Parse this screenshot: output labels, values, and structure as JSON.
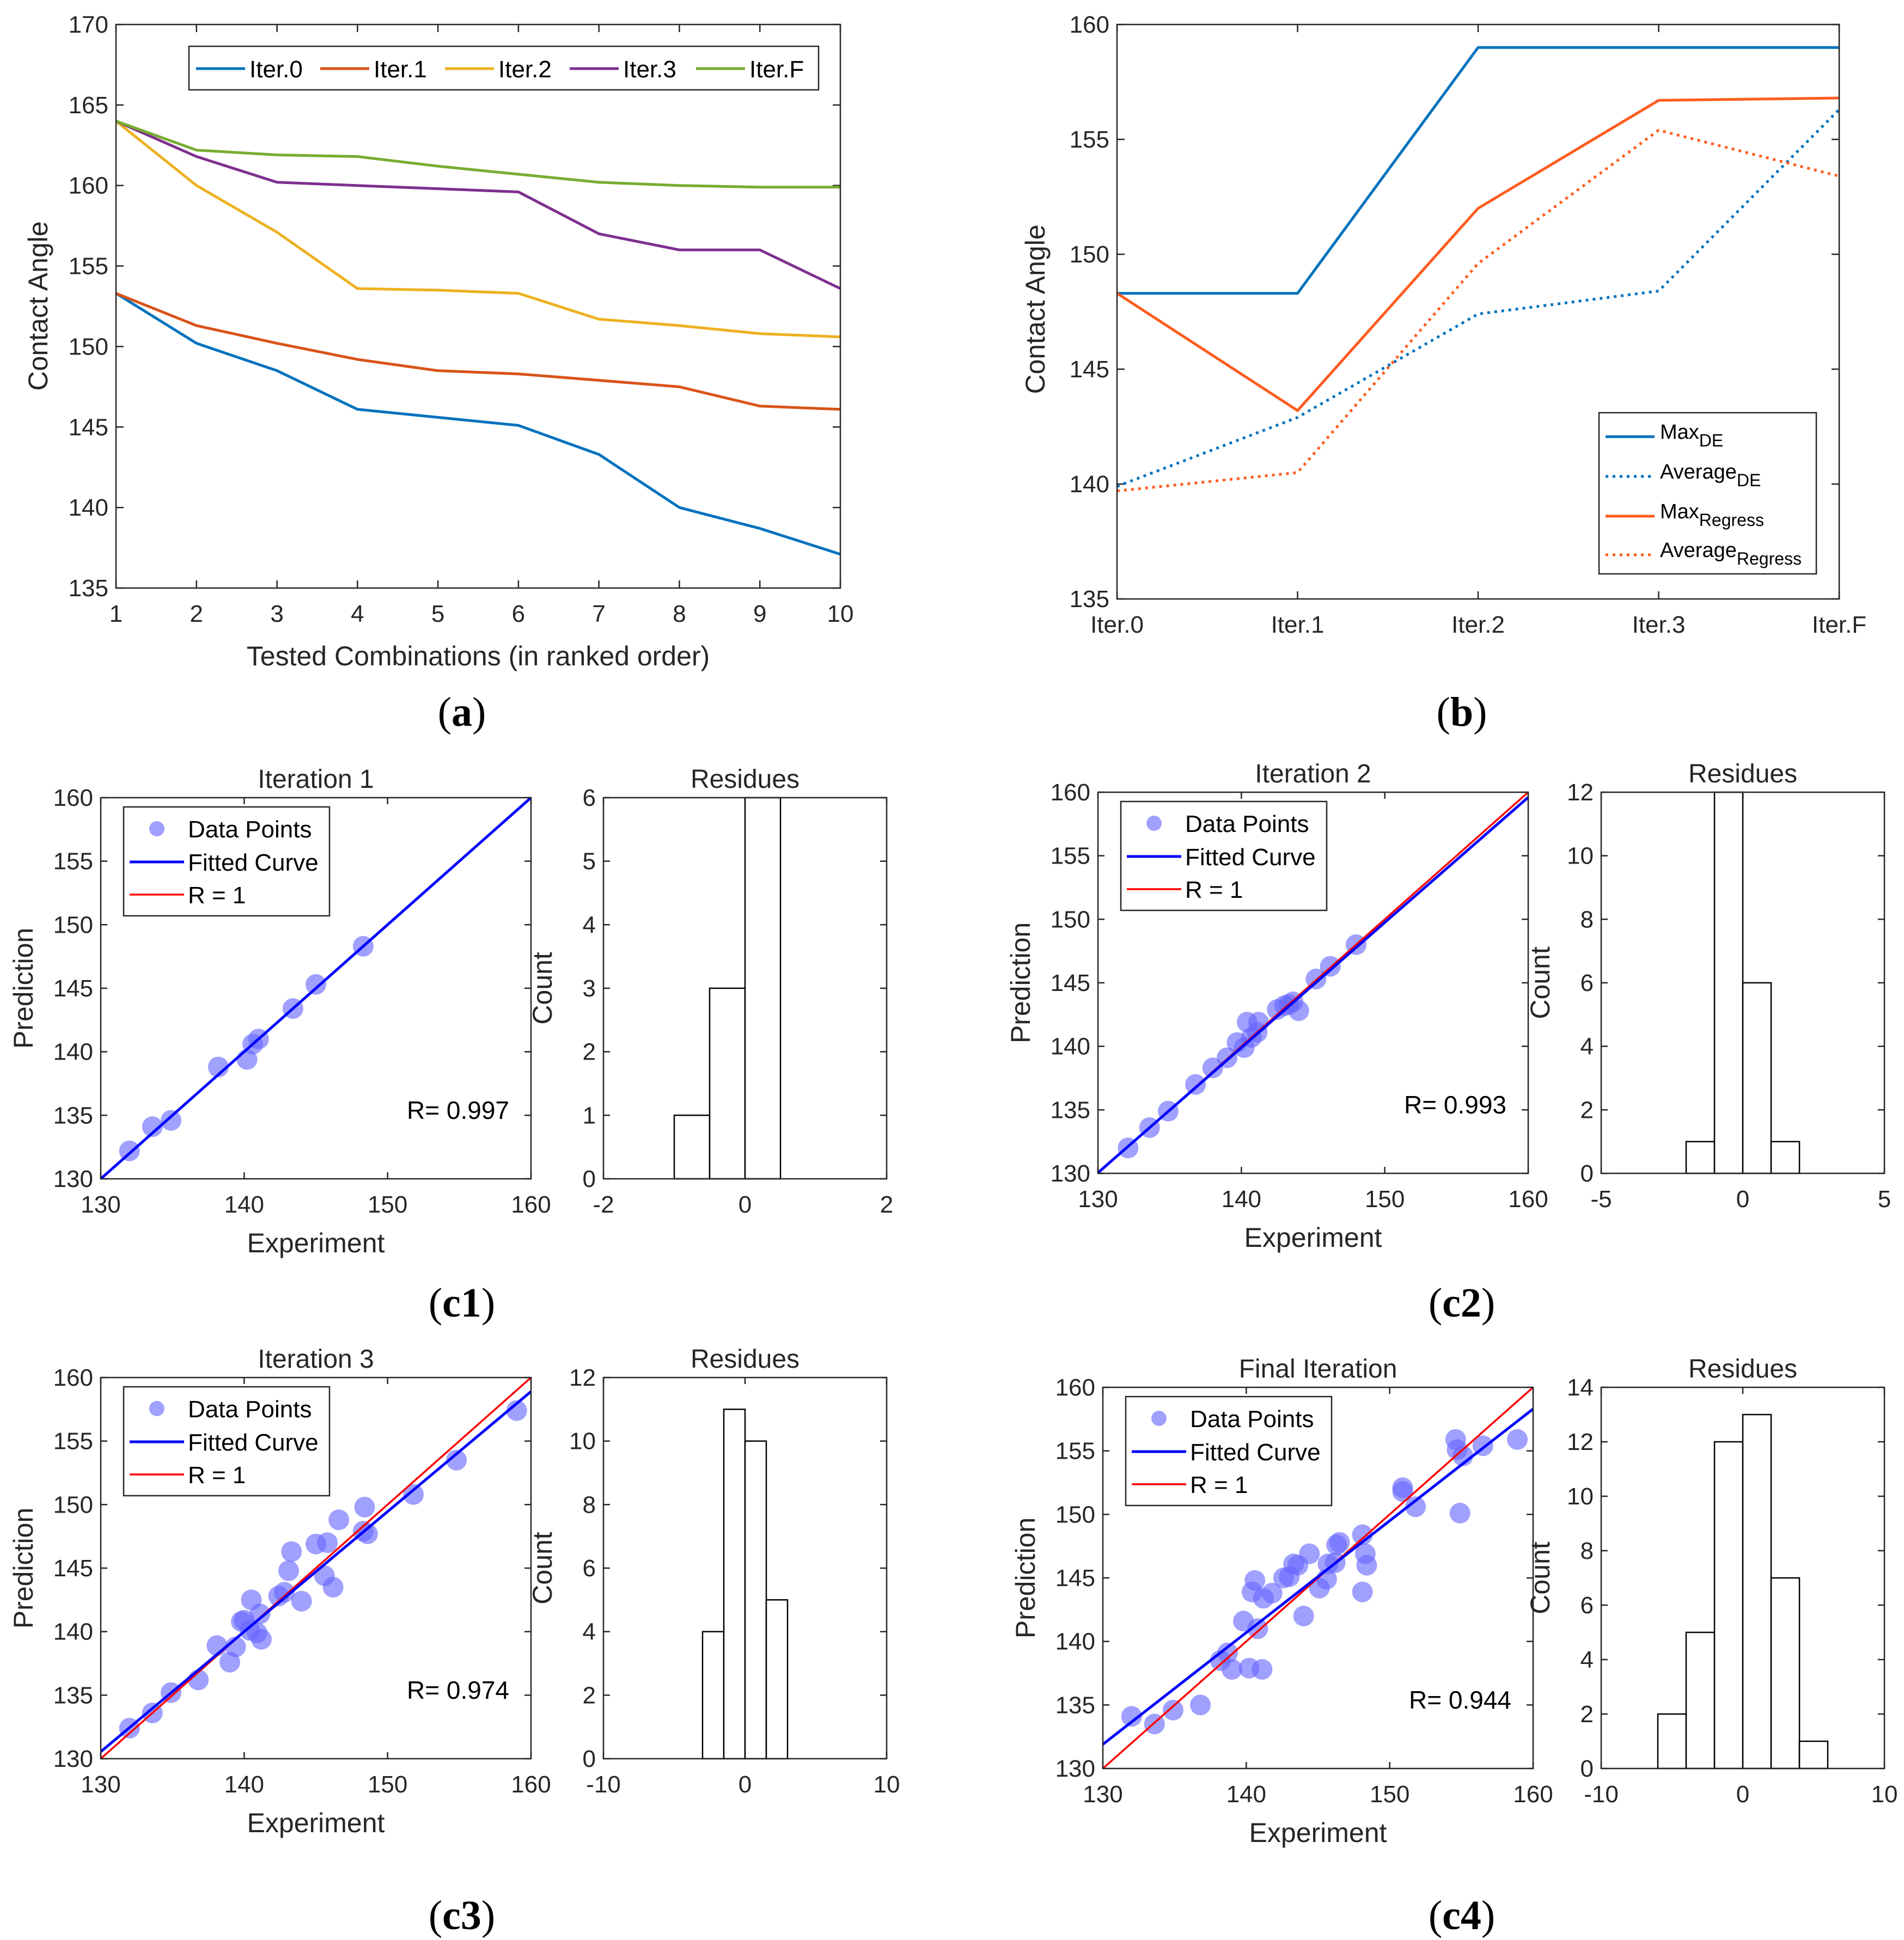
{
  "colors": {
    "iter0": "#0072BD",
    "iter1": "#D95319",
    "iter2": "#EDB120",
    "iter3": "#7E2F8E",
    "iterF": "#77AC30",
    "blue": "#0000FF",
    "red": "#FF0000",
    "points": "#6666FF"
  },
  "captions": {
    "a": [
      "(",
      "a",
      ")"
    ],
    "b": [
      "(",
      "b",
      ")"
    ],
    "c1": [
      "(",
      "c1",
      ")"
    ],
    "c2": [
      "(",
      "c2",
      ")"
    ],
    "c3": [
      "(",
      "c3",
      ")"
    ],
    "c4": [
      "(",
      "c4",
      ")"
    ]
  },
  "chart_data": [
    {
      "id": "a",
      "type": "line",
      "title": "",
      "xlabel": "Tested Combinations (in ranked order)",
      "ylabel": "Contact Angle",
      "xlim": [
        1,
        10
      ],
      "ylim": [
        135,
        170
      ],
      "xticks": [
        1,
        2,
        3,
        4,
        5,
        6,
        7,
        8,
        9,
        10
      ],
      "yticks": [
        135,
        140,
        145,
        150,
        155,
        160,
        165,
        170
      ],
      "legend_position": "top",
      "x": [
        1,
        2,
        3,
        4,
        5,
        6,
        7,
        8,
        9,
        10
      ],
      "series": [
        {
          "name": "Iter.0",
          "color": "#0072BD",
          "values": [
            153.3,
            150.2,
            148.5,
            146.1,
            145.6,
            145.1,
            143.3,
            140.0,
            138.7,
            137.1
          ]
        },
        {
          "name": "Iter.1",
          "color": "#D95319",
          "values": [
            153.3,
            151.3,
            150.2,
            149.2,
            148.5,
            148.3,
            147.9,
            147.5,
            146.3,
            146.1
          ]
        },
        {
          "name": "Iter.2",
          "color": "#EDB120",
          "values": [
            164.0,
            160.0,
            157.1,
            153.6,
            153.5,
            153.3,
            151.7,
            151.3,
            150.8,
            150.6
          ]
        },
        {
          "name": "Iter.3",
          "color": "#7E2F8E",
          "values": [
            164.0,
            161.8,
            160.2,
            160.0,
            159.8,
            159.6,
            157.0,
            156.0,
            156.0,
            153.6
          ]
        },
        {
          "name": "Iter.F",
          "color": "#77AC30",
          "values": [
            164.0,
            162.2,
            161.9,
            161.8,
            161.2,
            160.7,
            160.2,
            160.0,
            159.9,
            159.9
          ]
        }
      ]
    },
    {
      "id": "b",
      "type": "line",
      "title": "",
      "xlabel": "",
      "ylabel": "Contact Angle",
      "categories": [
        "Iter.0",
        "Iter.1",
        "Iter.2",
        "Iter.3",
        "Iter.F"
      ],
      "ylim": [
        135,
        160
      ],
      "yticks": [
        135,
        140,
        145,
        150,
        155,
        160
      ],
      "legend_position": "bottom-right",
      "series": [
        {
          "name": "Max",
          "sub": "DE",
          "color": "#0072BD",
          "style": "solid",
          "values": [
            148.3,
            148.3,
            159.0,
            159.0,
            159.0
          ]
        },
        {
          "name": "Average",
          "sub": "DE",
          "color": "#0072BD",
          "style": "dotted",
          "values": [
            139.9,
            142.9,
            147.4,
            148.4,
            156.3
          ]
        },
        {
          "name": "Max",
          "sub": "Regress",
          "color": "#FF5C1F",
          "style": "solid",
          "values": [
            148.3,
            143.2,
            152.0,
            156.7,
            156.8
          ]
        },
        {
          "name": "Average",
          "sub": "Regress",
          "color": "#FF5C1F",
          "style": "dotted",
          "values": [
            139.7,
            140.5,
            149.6,
            155.4,
            153.4
          ]
        }
      ]
    },
    {
      "id": "c1",
      "type": "scatter",
      "title": "Iteration 1",
      "xlabel": "Experiment",
      "ylabel": "Prediction",
      "xlim": [
        130,
        160
      ],
      "ylim": [
        130,
        160
      ],
      "xticks": [
        130,
        140,
        150,
        160
      ],
      "yticks": [
        130,
        135,
        140,
        145,
        150,
        155,
        160
      ],
      "legend": [
        "Data Points",
        "Fitted Curve",
        "R = 1"
      ],
      "r_text": "R= 0.997",
      "fit": {
        "slope": 1.0,
        "intercept": 0.0
      },
      "points": [
        [
          132.0,
          132.2
        ],
        [
          133.6,
          134.1
        ],
        [
          134.9,
          134.6
        ],
        [
          138.2,
          138.8
        ],
        [
          140.2,
          139.4
        ],
        [
          140.6,
          140.6
        ],
        [
          141.0,
          141.0
        ],
        [
          143.4,
          143.4
        ],
        [
          145.0,
          145.3
        ],
        [
          148.3,
          148.3
        ]
      ],
      "hist": {
        "title": "Residues",
        "ylabel": "Count",
        "xlim": [
          -2,
          2
        ],
        "ylim": [
          0,
          6
        ],
        "xticks": [
          -2,
          0,
          2
        ],
        "yticks": [
          0,
          1,
          2,
          3,
          4,
          5,
          6
        ],
        "edges": [
          -1.0,
          -0.5,
          0.0,
          0.5
        ],
        "counts": [
          1,
          3,
          6
        ]
      }
    },
    {
      "id": "c2",
      "type": "scatter",
      "title": "Iteration 2",
      "xlabel": "Experiment",
      "ylabel": "Prediction",
      "xlim": [
        130,
        160
      ],
      "ylim": [
        130,
        160
      ],
      "xticks": [
        130,
        140,
        150,
        160
      ],
      "yticks": [
        130,
        135,
        140,
        145,
        150,
        155,
        160
      ],
      "legend": [
        "Data Points",
        "Fitted Curve",
        "R = 1"
      ],
      "r_text": "R= 0.993",
      "fit": {
        "slope": 0.985,
        "intercept": 2.0
      },
      "points": [
        [
          132.1,
          132.0
        ],
        [
          133.6,
          133.6
        ],
        [
          134.9,
          134.9
        ],
        [
          136.8,
          137.0
        ],
        [
          138.0,
          138.3
        ],
        [
          139.0,
          139.1
        ],
        [
          139.7,
          140.3
        ],
        [
          140.2,
          139.9
        ],
        [
          140.4,
          141.9
        ],
        [
          140.7,
          140.7
        ],
        [
          141.1,
          141.1
        ],
        [
          141.2,
          141.9
        ],
        [
          142.5,
          142.9
        ],
        [
          143.0,
          143.2
        ],
        [
          143.3,
          143.3
        ],
        [
          143.6,
          143.5
        ],
        [
          144.0,
          142.8
        ],
        [
          145.2,
          145.3
        ],
        [
          146.2,
          146.3
        ],
        [
          148.0,
          148.0
        ]
      ],
      "hist": {
        "title": "Residues",
        "ylabel": "Count",
        "xlim": [
          -5,
          5
        ],
        "ylim": [
          0,
          12
        ],
        "xticks": [
          -5,
          0,
          5
        ],
        "yticks": [
          0,
          2,
          4,
          6,
          8,
          10,
          12
        ],
        "edges": [
          -2,
          -1,
          0,
          1,
          2
        ],
        "counts": [
          1,
          12,
          6,
          1
        ]
      }
    },
    {
      "id": "c3",
      "type": "scatter",
      "title": "Iteration 3",
      "xlabel": "Experiment",
      "ylabel": "Prediction",
      "xlim": [
        130,
        160
      ],
      "ylim": [
        130,
        160
      ],
      "xticks": [
        130,
        140,
        150,
        160
      ],
      "yticks": [
        130,
        135,
        140,
        145,
        150,
        155,
        160
      ],
      "legend": [
        "Data Points",
        "Fitted Curve",
        "R = 1"
      ],
      "r_text": "R= 0.974",
      "fit": {
        "slope": 0.945,
        "intercept": 7.7
      },
      "points": [
        [
          132.0,
          132.4
        ],
        [
          133.6,
          133.6
        ],
        [
          134.9,
          135.2
        ],
        [
          136.8,
          136.2
        ],
        [
          138.1,
          138.9
        ],
        [
          139.0,
          137.6
        ],
        [
          139.4,
          138.8
        ],
        [
          139.8,
          140.8
        ],
        [
          140.0,
          140.9
        ],
        [
          140.4,
          140.1
        ],
        [
          140.5,
          142.5
        ],
        [
          140.9,
          139.9
        ],
        [
          141.1,
          141.4
        ],
        [
          141.2,
          139.4
        ],
        [
          142.4,
          142.8
        ],
        [
          142.8,
          143.1
        ],
        [
          143.1,
          144.8
        ],
        [
          143.3,
          146.3
        ],
        [
          144.0,
          142.4
        ],
        [
          145.0,
          146.9
        ],
        [
          145.6,
          144.4
        ],
        [
          145.8,
          147.0
        ],
        [
          146.2,
          143.5
        ],
        [
          146.6,
          148.8
        ],
        [
          148.3,
          147.9
        ],
        [
          148.4,
          149.8
        ],
        [
          148.6,
          147.7
        ],
        [
          151.8,
          150.8
        ],
        [
          154.8,
          153.5
        ],
        [
          159.0,
          157.4
        ]
      ],
      "hist": {
        "title": "Residues",
        "ylabel": "Count",
        "xlim": [
          -10,
          10
        ],
        "ylim": [
          0,
          12
        ],
        "xticks": [
          -10,
          0,
          10
        ],
        "yticks": [
          0,
          2,
          4,
          6,
          8,
          10,
          12
        ],
        "edges": [
          -3,
          -1.5,
          0,
          1.5,
          3
        ],
        "counts": [
          4,
          11,
          10,
          5
        ]
      }
    },
    {
      "id": "c4",
      "type": "scatter",
      "title": "Final Iteration",
      "xlabel": "Experiment",
      "ylabel": "Prediction",
      "xlim": [
        130,
        160
      ],
      "ylim": [
        130,
        160
      ],
      "xticks": [
        130,
        140,
        150,
        160
      ],
      "yticks": [
        130,
        135,
        140,
        145,
        150,
        155,
        160
      ],
      "legend": [
        "Data Points",
        "Fitted Curve",
        "R = 1"
      ],
      "r_text": "R= 0.944",
      "fit": {
        "slope": 0.88,
        "intercept": 17.5
      },
      "points": [
        [
          132.0,
          134.1
        ],
        [
          133.6,
          133.5
        ],
        [
          134.9,
          134.6
        ],
        [
          136.8,
          135.0
        ],
        [
          138.2,
          138.5
        ],
        [
          138.7,
          139.1
        ],
        [
          139.0,
          137.8
        ],
        [
          139.8,
          141.6
        ],
        [
          140.2,
          137.9
        ],
        [
          140.4,
          143.9
        ],
        [
          140.6,
          144.8
        ],
        [
          140.8,
          141.0
        ],
        [
          141.1,
          137.8
        ],
        [
          141.2,
          143.4
        ],
        [
          141.8,
          143.8
        ],
        [
          142.6,
          145.0
        ],
        [
          143.0,
          145.1
        ],
        [
          143.3,
          146.1
        ],
        [
          143.6,
          146.0
        ],
        [
          144.0,
          142.0
        ],
        [
          144.4,
          146.9
        ],
        [
          145.1,
          144.2
        ],
        [
          145.6,
          144.9
        ],
        [
          145.7,
          146.1
        ],
        [
          146.2,
          146.2
        ],
        [
          146.3,
          147.6
        ],
        [
          146.5,
          147.8
        ],
        [
          148.1,
          143.9
        ],
        [
          148.1,
          148.4
        ],
        [
          148.3,
          146.9
        ],
        [
          148.4,
          146.0
        ],
        [
          150.9,
          152.1
        ],
        [
          150.9,
          151.8
        ],
        [
          151.8,
          150.6
        ],
        [
          154.6,
          155.9
        ],
        [
          154.7,
          155.1
        ],
        [
          154.9,
          150.1
        ],
        [
          155.1,
          154.6
        ],
        [
          156.5,
          155.4
        ],
        [
          158.9,
          155.9
        ]
      ],
      "hist": {
        "title": "Residues",
        "ylabel": "Count",
        "xlim": [
          -10,
          10
        ],
        "ylim": [
          0,
          14
        ],
        "xticks": [
          -10,
          0,
          10
        ],
        "yticks": [
          0,
          2,
          4,
          6,
          8,
          10,
          12,
          14
        ],
        "edges": [
          -6,
          -4,
          -2,
          0,
          2,
          4,
          6
        ],
        "counts": [
          2,
          5,
          12,
          13,
          7,
          1
        ]
      }
    }
  ]
}
